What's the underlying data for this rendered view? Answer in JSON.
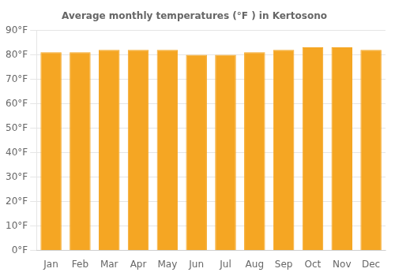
{
  "chart_data": {
    "type": "bar",
    "title": "Average monthly temperatures (°F ) in Kertosono",
    "categories": [
      "Jan",
      "Feb",
      "Mar",
      "Apr",
      "May",
      "Jun",
      "Jul",
      "Aug",
      "Sep",
      "Oct",
      "Nov",
      "Dec"
    ],
    "values": [
      81,
      81,
      82,
      82,
      82,
      80,
      80,
      81,
      82,
      83,
      83,
      82
    ],
    "color": "#F5A623",
    "ylim": [
      0,
      90
    ],
    "yticks": [
      {
        "value": 0,
        "label": "0°F"
      },
      {
        "value": 10,
        "label": "10°F"
      },
      {
        "value": 20,
        "label": "20°F"
      },
      {
        "value": 30,
        "label": "30°F"
      },
      {
        "value": 40,
        "label": "40°F"
      },
      {
        "value": 50,
        "label": "50°F"
      },
      {
        "value": 60,
        "label": "60°F"
      },
      {
        "value": 70,
        "label": "70°F"
      },
      {
        "value": 80,
        "label": "80°F"
      },
      {
        "value": 90,
        "label": "90°F"
      }
    ],
    "grid": true
  }
}
